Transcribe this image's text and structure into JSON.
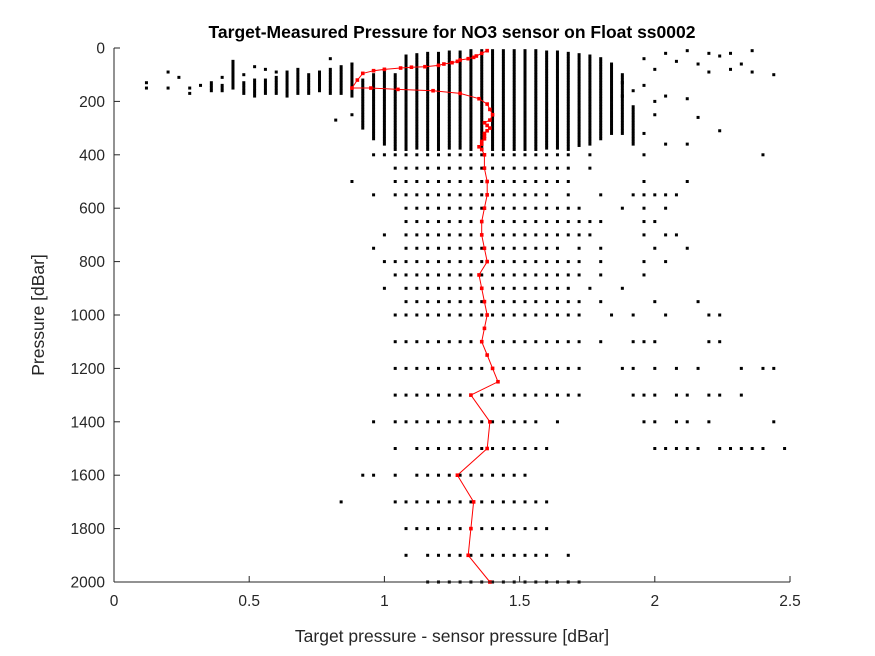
{
  "chart_data": {
    "type": "scatter",
    "title": "Target-Measured Pressure for NO3 sensor on Float ss0002",
    "xlabel": "Target pressure - sensor pressure [dBar]",
    "ylabel": "Pressure [dBar]",
    "xlim": [
      0,
      2.5
    ],
    "ylim": [
      0,
      2000
    ],
    "y_reversed": true,
    "grid": false,
    "legend": "none",
    "xticks": [
      "0",
      "0.5",
      "1",
      "1.5",
      "2",
      "2.5"
    ],
    "yticks": [
      "0",
      "200",
      "400",
      "600",
      "800",
      "1000",
      "1200",
      "1400",
      "1600",
      "1800",
      "2000"
    ],
    "colors": {
      "scatter": "#000000",
      "mean_line": "#ff0000",
      "axes": "#262626"
    },
    "scatter_rows": [
      {
        "p": 400,
        "x": [
          0.96,
          1.0,
          1.04,
          1.08,
          1.12,
          1.16,
          1.2,
          1.24,
          1.28,
          1.32,
          1.36,
          1.4,
          1.44,
          1.48,
          1.52,
          1.56,
          1.6,
          1.64,
          1.68,
          1.76,
          1.96,
          2.4
        ]
      },
      {
        "p": 450,
        "x": [
          1.04,
          1.08,
          1.12,
          1.16,
          1.2,
          1.24,
          1.28,
          1.32,
          1.36,
          1.4,
          1.44,
          1.48,
          1.52,
          1.56,
          1.6,
          1.64,
          1.68,
          1.76
        ]
      },
      {
        "p": 500,
        "x": [
          0.88,
          1.04,
          1.08,
          1.12,
          1.16,
          1.2,
          1.24,
          1.28,
          1.32,
          1.36,
          1.4,
          1.44,
          1.48,
          1.52,
          1.56,
          1.6,
          1.64,
          1.68,
          1.96,
          2.12
        ]
      },
      {
        "p": 550,
        "x": [
          0.96,
          1.04,
          1.08,
          1.12,
          1.16,
          1.2,
          1.24,
          1.28,
          1.32,
          1.36,
          1.4,
          1.44,
          1.48,
          1.52,
          1.56,
          1.6,
          1.68,
          1.8,
          1.92,
          1.96,
          2.0,
          2.04,
          2.08
        ]
      },
      {
        "p": 600,
        "x": [
          1.08,
          1.12,
          1.16,
          1.2,
          1.24,
          1.28,
          1.32,
          1.36,
          1.4,
          1.44,
          1.48,
          1.52,
          1.56,
          1.6,
          1.64,
          1.68,
          1.72,
          1.88,
          1.96,
          2.04
        ]
      },
      {
        "p": 650,
        "x": [
          1.08,
          1.12,
          1.16,
          1.2,
          1.24,
          1.28,
          1.32,
          1.36,
          1.4,
          1.44,
          1.48,
          1.52,
          1.56,
          1.6,
          1.64,
          1.68,
          1.72,
          1.76,
          1.8,
          1.96,
          2.0
        ]
      },
      {
        "p": 700,
        "x": [
          1.0,
          1.08,
          1.12,
          1.16,
          1.2,
          1.24,
          1.28,
          1.32,
          1.36,
          1.4,
          1.44,
          1.48,
          1.52,
          1.56,
          1.6,
          1.64,
          1.68,
          1.72,
          1.76,
          1.96,
          2.04,
          2.08
        ]
      },
      {
        "p": 750,
        "x": [
          0.96,
          1.08,
          1.12,
          1.16,
          1.2,
          1.24,
          1.28,
          1.32,
          1.36,
          1.4,
          1.44,
          1.48,
          1.52,
          1.56,
          1.6,
          1.64,
          1.72,
          1.8,
          2.0,
          2.12
        ]
      },
      {
        "p": 800,
        "x": [
          1.0,
          1.04,
          1.08,
          1.12,
          1.16,
          1.2,
          1.24,
          1.28,
          1.32,
          1.36,
          1.4,
          1.44,
          1.48,
          1.52,
          1.56,
          1.6,
          1.64,
          1.68,
          1.72,
          1.8,
          1.96,
          2.04
        ]
      },
      {
        "p": 850,
        "x": [
          1.04,
          1.08,
          1.12,
          1.16,
          1.2,
          1.24,
          1.28,
          1.32,
          1.36,
          1.4,
          1.44,
          1.48,
          1.52,
          1.56,
          1.6,
          1.64,
          1.68,
          1.72,
          1.8,
          1.96
        ]
      },
      {
        "p": 900,
        "x": [
          1.0,
          1.08,
          1.12,
          1.16,
          1.2,
          1.24,
          1.28,
          1.32,
          1.36,
          1.4,
          1.44,
          1.48,
          1.52,
          1.56,
          1.6,
          1.64,
          1.68,
          1.76,
          1.88
        ]
      },
      {
        "p": 950,
        "x": [
          1.08,
          1.12,
          1.16,
          1.2,
          1.24,
          1.28,
          1.32,
          1.36,
          1.4,
          1.44,
          1.48,
          1.52,
          1.56,
          1.6,
          1.64,
          1.68,
          1.72,
          1.8,
          2.0,
          2.16
        ]
      },
      {
        "p": 1000,
        "x": [
          1.04,
          1.08,
          1.12,
          1.16,
          1.2,
          1.24,
          1.28,
          1.32,
          1.36,
          1.4,
          1.44,
          1.48,
          1.52,
          1.56,
          1.6,
          1.64,
          1.68,
          1.72,
          1.84,
          1.92,
          2.04,
          2.2,
          2.24
        ]
      },
      {
        "p": 1100,
        "x": [
          1.04,
          1.08,
          1.12,
          1.16,
          1.2,
          1.24,
          1.28,
          1.32,
          1.36,
          1.4,
          1.44,
          1.48,
          1.52,
          1.56,
          1.6,
          1.64,
          1.68,
          1.72,
          1.8,
          1.92,
          1.96,
          2.0,
          2.2,
          2.24
        ]
      },
      {
        "p": 1200,
        "x": [
          1.04,
          1.08,
          1.12,
          1.16,
          1.2,
          1.24,
          1.28,
          1.32,
          1.36,
          1.4,
          1.44,
          1.48,
          1.52,
          1.56,
          1.6,
          1.64,
          1.68,
          1.72,
          1.88,
          1.92,
          2.0,
          2.08,
          2.16,
          2.32,
          2.4,
          2.44
        ]
      },
      {
        "p": 1300,
        "x": [
          1.04,
          1.08,
          1.12,
          1.16,
          1.2,
          1.24,
          1.28,
          1.32,
          1.36,
          1.4,
          1.44,
          1.48,
          1.52,
          1.56,
          1.6,
          1.64,
          1.68,
          1.72,
          1.92,
          1.96,
          2.0,
          2.08,
          2.12,
          2.2,
          2.24,
          2.32
        ]
      },
      {
        "p": 1400,
        "x": [
          0.96,
          1.04,
          1.08,
          1.12,
          1.16,
          1.2,
          1.24,
          1.28,
          1.32,
          1.36,
          1.4,
          1.44,
          1.48,
          1.52,
          1.56,
          1.64,
          1.96,
          2.0,
          2.08,
          2.12,
          2.2,
          2.44
        ]
      },
      {
        "p": 1500,
        "x": [
          1.04,
          1.12,
          1.16,
          1.2,
          1.24,
          1.28,
          1.32,
          1.36,
          1.4,
          1.44,
          1.48,
          1.52,
          1.56,
          1.6,
          2.0,
          2.04,
          2.08,
          2.12,
          2.16,
          2.24,
          2.28,
          2.32,
          2.36,
          2.4,
          2.48,
          2.52
        ]
      },
      {
        "p": 1600,
        "x": [
          0.92,
          0.96,
          1.04,
          1.12,
          1.16,
          1.2,
          1.24,
          1.28,
          1.32,
          1.36,
          1.4,
          1.44,
          1.48,
          1.52
        ]
      },
      {
        "p": 1700,
        "x": [
          0.84,
          1.04,
          1.08,
          1.12,
          1.16,
          1.2,
          1.24,
          1.28,
          1.32,
          1.36,
          1.4,
          1.44,
          1.48,
          1.52,
          1.56,
          1.6
        ]
      },
      {
        "p": 1800,
        "x": [
          1.08,
          1.12,
          1.16,
          1.2,
          1.24,
          1.28,
          1.32,
          1.36,
          1.4,
          1.44,
          1.48,
          1.52,
          1.56,
          1.6
        ]
      },
      {
        "p": 1900,
        "x": [
          1.08,
          1.16,
          1.2,
          1.24,
          1.28,
          1.32,
          1.36,
          1.4,
          1.44,
          1.48,
          1.52,
          1.56,
          1.6,
          1.68
        ]
      },
      {
        "p": 2000,
        "x": [
          1.16,
          1.2,
          1.24,
          1.28,
          1.32,
          1.36,
          1.4,
          1.44,
          1.48,
          1.52,
          1.56,
          1.6,
          1.64,
          1.68,
          1.72
        ]
      }
    ],
    "scatter_columns": [
      {
        "x": 1.04,
        "p": [
          100,
          380
        ]
      },
      {
        "x": 1.08,
        "p": [
          30,
          380
        ]
      },
      {
        "x": 1.12,
        "p": [
          25,
          380
        ]
      },
      {
        "x": 1.16,
        "p": [
          20,
          380
        ]
      },
      {
        "x": 1.2,
        "p": [
          20,
          380
        ]
      },
      {
        "x": 1.24,
        "p": [
          15,
          380
        ]
      },
      {
        "x": 1.28,
        "p": [
          15,
          380
        ]
      },
      {
        "x": 1.32,
        "p": [
          10,
          380
        ]
      },
      {
        "x": 1.36,
        "p": [
          10,
          380
        ]
      },
      {
        "x": 1.4,
        "p": [
          10,
          380
        ]
      },
      {
        "x": 1.44,
        "p": [
          10,
          380
        ]
      },
      {
        "x": 1.48,
        "p": [
          10,
          380
        ]
      },
      {
        "x": 1.52,
        "p": [
          10,
          380
        ]
      },
      {
        "x": 1.56,
        "p": [
          10,
          380
        ]
      },
      {
        "x": 1.6,
        "p": [
          15,
          380
        ]
      },
      {
        "x": 1.64,
        "p": [
          15,
          380
        ]
      },
      {
        "x": 1.68,
        "p": [
          20,
          380
        ]
      },
      {
        "x": 1.72,
        "p": [
          25,
          370
        ]
      },
      {
        "x": 1.76,
        "p": [
          30,
          360
        ]
      },
      {
        "x": 1.8,
        "p": [
          40,
          340
        ]
      },
      {
        "x": 1.84,
        "p": [
          60,
          320
        ]
      },
      {
        "x": 1.88,
        "p": [
          100,
          320
        ]
      },
      {
        "x": 1.92,
        "p": [
          220,
          360
        ]
      },
      {
        "x": 1.0,
        "p": [
          80,
          360
        ]
      },
      {
        "x": 0.96,
        "p": [
          100,
          340
        ]
      },
      {
        "x": 0.92,
        "p": [
          120,
          300
        ]
      },
      {
        "x": 0.88,
        "p": [
          60,
          180
        ]
      },
      {
        "x": 0.84,
        "p": [
          70,
          170
        ]
      },
      {
        "x": 0.8,
        "p": [
          80,
          170
        ]
      },
      {
        "x": 0.76,
        "p": [
          90,
          160
        ]
      },
      {
        "x": 0.72,
        "p": [
          100,
          170
        ]
      },
      {
        "x": 0.68,
        "p": [
          80,
          170
        ]
      },
      {
        "x": 0.64,
        "p": [
          90,
          180
        ]
      },
      {
        "x": 0.6,
        "p": [
          110,
          170
        ]
      },
      {
        "x": 0.56,
        "p": [
          120,
          170
        ]
      },
      {
        "x": 0.52,
        "p": [
          120,
          180
        ]
      },
      {
        "x": 0.48,
        "p": [
          130,
          170
        ]
      },
      {
        "x": 0.44,
        "p": [
          60,
          150
        ]
      },
      {
        "x": 0.4,
        "p": [
          140,
          160
        ]
      },
      {
        "x": 0.36,
        "p": [
          140,
          160
        ]
      }
    ],
    "scatter_points": [
      {
        "x": 0.12,
        "p": 130
      },
      {
        "x": 0.12,
        "p": 150
      },
      {
        "x": 0.2,
        "p": 90
      },
      {
        "x": 0.2,
        "p": 150
      },
      {
        "x": 0.24,
        "p": 110
      },
      {
        "x": 0.28,
        "p": 150
      },
      {
        "x": 0.28,
        "p": 170
      },
      {
        "x": 0.32,
        "p": 140
      },
      {
        "x": 0.36,
        "p": 130
      },
      {
        "x": 0.4,
        "p": 110
      },
      {
        "x": 0.44,
        "p": 50
      },
      {
        "x": 0.48,
        "p": 100
      },
      {
        "x": 0.52,
        "p": 70
      },
      {
        "x": 0.56,
        "p": 80
      },
      {
        "x": 0.6,
        "p": 90
      },
      {
        "x": 0.8,
        "p": 40
      },
      {
        "x": 0.82,
        "p": 270
      },
      {
        "x": 0.88,
        "p": 250
      },
      {
        "x": 0.88,
        "p": 60
      },
      {
        "x": 1.96,
        "p": 140
      },
      {
        "x": 1.96,
        "p": 40
      },
      {
        "x": 2.0,
        "p": 250
      },
      {
        "x": 2.04,
        "p": 360
      },
      {
        "x": 2.0,
        "p": 80
      },
      {
        "x": 2.04,
        "p": 20
      },
      {
        "x": 2.08,
        "p": 50
      },
      {
        "x": 2.12,
        "p": 190
      },
      {
        "x": 2.12,
        "p": 10
      },
      {
        "x": 2.16,
        "p": 60
      },
      {
        "x": 2.2,
        "p": 20
      },
      {
        "x": 2.24,
        "p": 30
      },
      {
        "x": 2.28,
        "p": 80
      },
      {
        "x": 2.32,
        "p": 60
      },
      {
        "x": 2.36,
        "p": 10
      },
      {
        "x": 2.36,
        "p": 90
      },
      {
        "x": 2.44,
        "p": 100
      },
      {
        "x": 2.0,
        "p": 200
      },
      {
        "x": 2.16,
        "p": 260
      },
      {
        "x": 2.24,
        "p": 310
      },
      {
        "x": 2.12,
        "p": 360
      },
      {
        "x": 1.96,
        "p": 320
      },
      {
        "x": 1.88,
        "p": 130
      },
      {
        "x": 1.88,
        "p": 180
      },
      {
        "x": 1.92,
        "p": 160
      },
      {
        "x": 2.04,
        "p": 180
      },
      {
        "x": 2.28,
        "p": 20
      },
      {
        "x": 2.2,
        "p": 90
      }
    ],
    "series": [
      {
        "line": "mean",
        "x": [
          1.38,
          1.36,
          1.34,
          1.33,
          1.31,
          1.28,
          1.27,
          1.25,
          1.22,
          1.2,
          1.15,
          1.1,
          1.06,
          1.0,
          0.96,
          0.92,
          0.9,
          0.88,
          0.95,
          1.05,
          1.18,
          1.28,
          1.35,
          1.38,
          1.39,
          1.4,
          1.39,
          1.37,
          1.38,
          1.39,
          1.38,
          1.37,
          1.37,
          1.37,
          1.36,
          1.36,
          1.35,
          1.36,
          1.37,
          1.37,
          1.38,
          1.38,
          1.37,
          1.36,
          1.36,
          1.37,
          1.38,
          1.35,
          1.36,
          1.37,
          1.38,
          1.37,
          1.36,
          1.38,
          1.4,
          1.42,
          1.32,
          1.39,
          1.38,
          1.27,
          1.33,
          1.32,
          1.31,
          1.39
        ],
        "p": [
          10,
          20,
          30,
          35,
          40,
          45,
          50,
          55,
          60,
          65,
          70,
          72,
          75,
          80,
          85,
          95,
          120,
          150,
          150,
          155,
          160,
          170,
          190,
          210,
          230,
          250,
          270,
          280,
          290,
          300,
          310,
          320,
          330,
          340,
          350,
          360,
          370,
          380,
          400,
          450,
          500,
          550,
          600,
          650,
          700,
          750,
          800,
          850,
          900,
          950,
          1000,
          1050,
          1100,
          1150,
          1200,
          1250,
          1300,
          1400,
          1500,
          1600,
          1700,
          1800,
          1900,
          2000
        ]
      }
    ]
  }
}
